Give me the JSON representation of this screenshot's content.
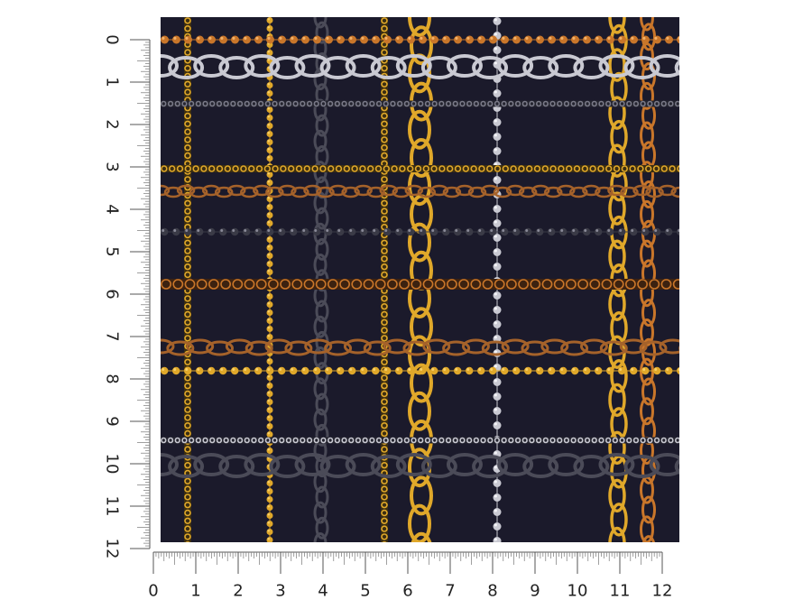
{
  "rulers": {
    "horizontal": {
      "labels": [
        "0",
        "1",
        "2",
        "3",
        "4",
        "5",
        "6",
        "7",
        "8",
        "9",
        "10",
        "11",
        "12"
      ]
    },
    "vertical": {
      "labels": [
        "0",
        "1",
        "2",
        "3",
        "4",
        "5",
        "6",
        "7",
        "8",
        "9",
        "10",
        "11",
        "12"
      ]
    }
  },
  "pattern": {
    "background_color": "#1b1a2b",
    "colors": {
      "gold": "#e0a82a",
      "gold_light": "#f6d069",
      "copper": "#c9762a",
      "bronze": "#a5622a",
      "silver": "#c9c9d2",
      "silver_dark": "#7a7a88",
      "gunmetal": "#4b4b58",
      "white": "#f2f2f6"
    }
  }
}
